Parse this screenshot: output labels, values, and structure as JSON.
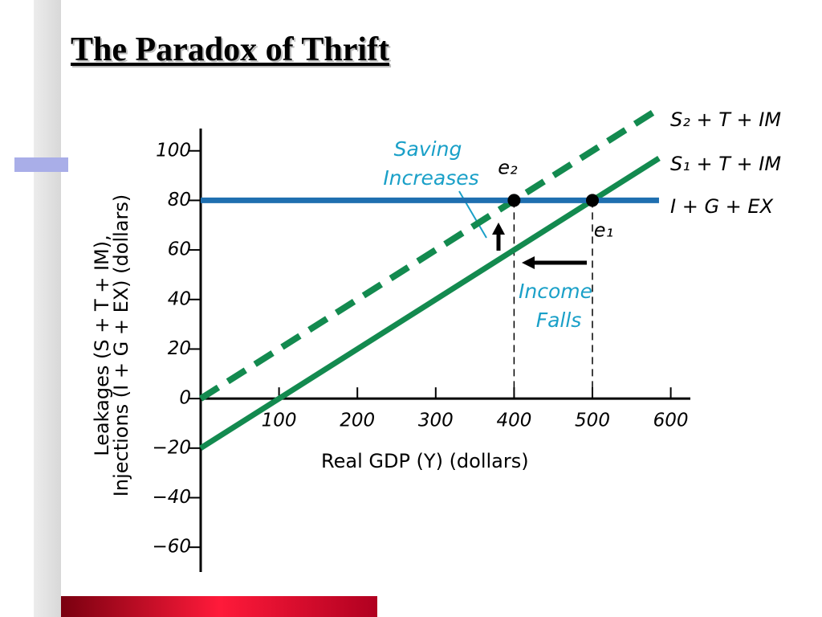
{
  "slide_title": "The Paradox of Thrift",
  "chart_data": {
    "type": "line",
    "x_label": "Real GDP (Y) (dollars)",
    "y_label": [
      "Leakages (S + T + IM),",
      "Injections (I + G + EX) (dollars)"
    ],
    "xlim": [
      0,
      625
    ],
    "ylim": [
      -70,
      109
    ],
    "xticks": [
      100,
      200,
      300,
      400,
      500,
      600
    ],
    "yticks": [
      {
        "value": -60,
        "label": "−60"
      },
      {
        "value": -40,
        "label": "−40"
      },
      {
        "value": -20,
        "label": "−20"
      },
      0,
      20,
      40,
      60,
      80,
      100
    ],
    "series": [
      {
        "name": "S₂ + T + IM",
        "color": "#138a4f",
        "style": "dashed",
        "x": [
          0,
          585
        ],
        "values": [
          0,
          117
        ]
      },
      {
        "name": "S₁ + T + IM",
        "color": "#138a4f",
        "style": "solid",
        "x": [
          0,
          585
        ],
        "values": [
          -20,
          97
        ]
      },
      {
        "name": "I + G + EX",
        "color": "#1f6fb0",
        "style": "solid",
        "x": [
          0,
          585
        ],
        "values": [
          80,
          80
        ]
      }
    ],
    "points": [
      {
        "label": "e₂",
        "x": 400,
        "y": 80
      },
      {
        "label": "e₁",
        "x": 500,
        "y": 80
      }
    ],
    "annotations": [
      [
        "Saving",
        "Increases"
      ],
      [
        "Income",
        "Falls"
      ]
    ]
  }
}
